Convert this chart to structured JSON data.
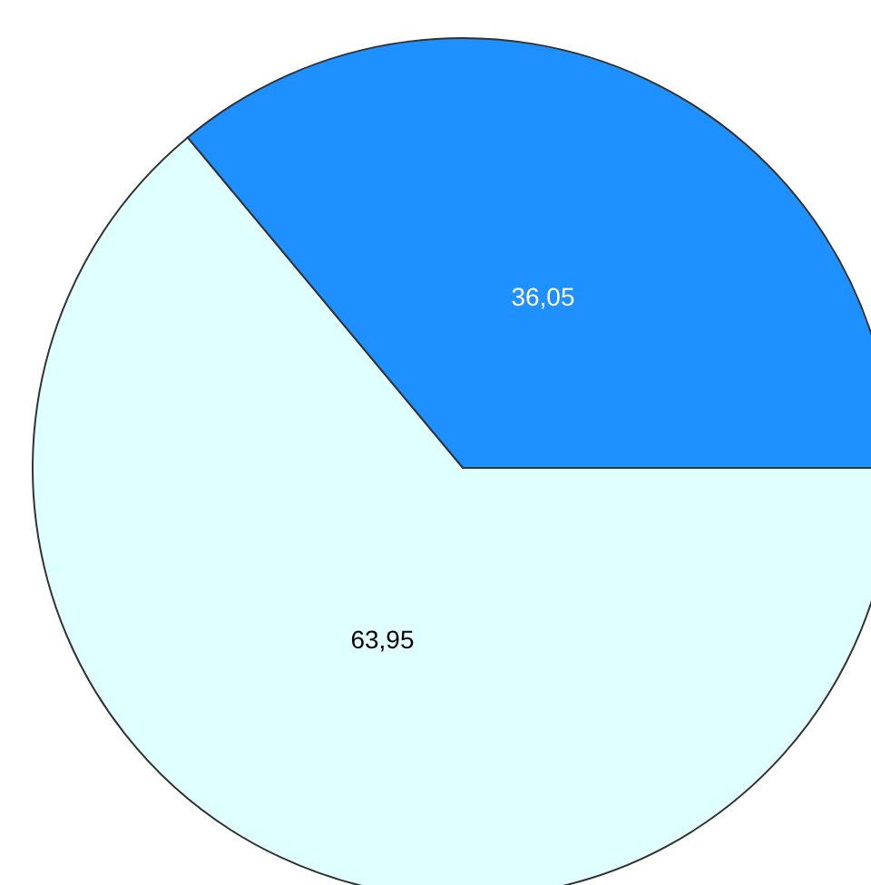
{
  "chart_data": {
    "type": "pie",
    "categories": [
      null,
      null
    ],
    "values": [
      36.05,
      63.95
    ],
    "colors": [
      "#1e90ff",
      "#e0ffff"
    ],
    "value_labels": [
      "36,05",
      "63,95"
    ]
  }
}
